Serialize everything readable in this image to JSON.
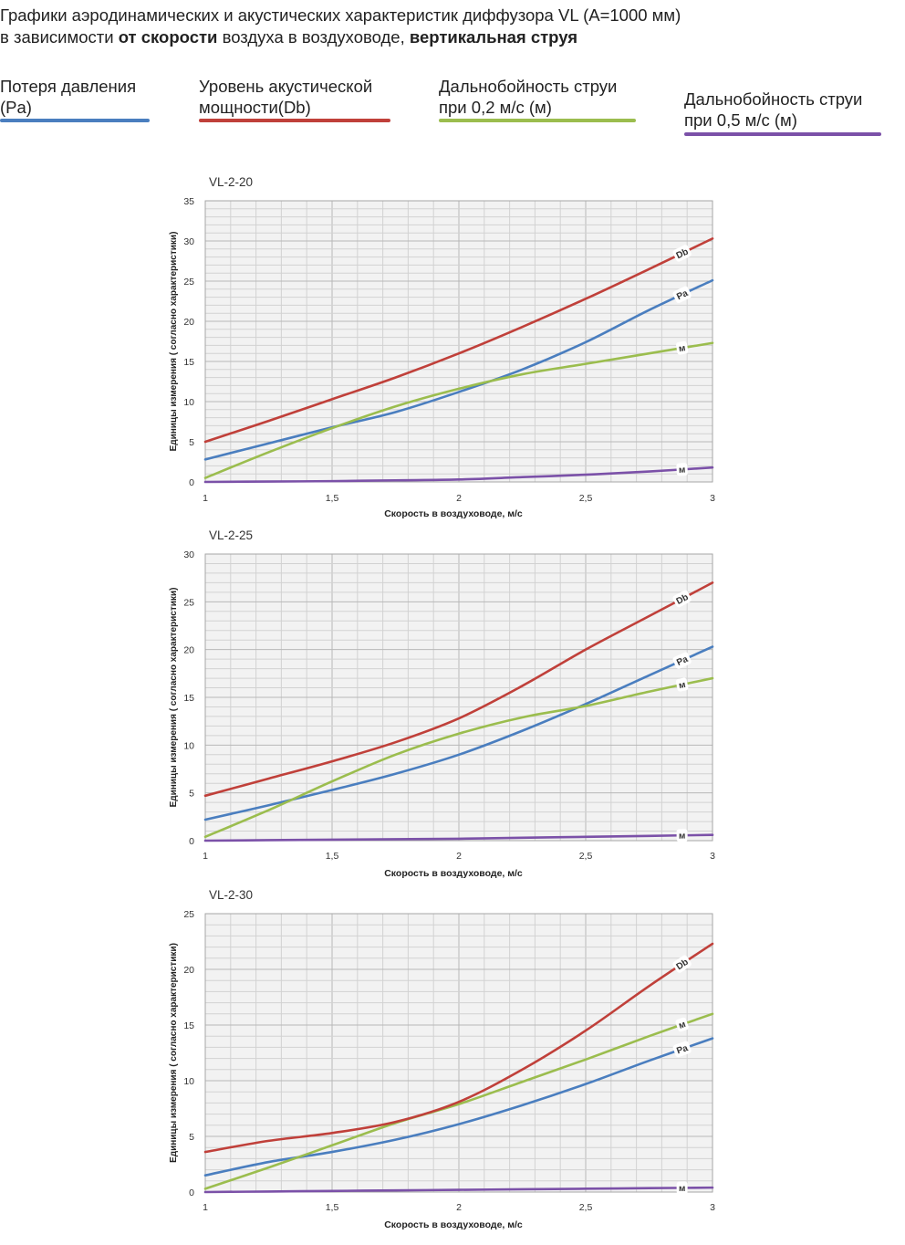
{
  "header": {
    "line1": "Графики аэродинамических и акустических характеристик  диффузора VL (А=1000 мм)",
    "line2_pre": "в зависимости ",
    "line2_bold1": "от скорости",
    "line2_mid": " воздуха в воздуховоде, ",
    "line2_bold2": "вертикальная струя"
  },
  "legend": [
    {
      "line1": "Потеря давления",
      "line2": "(Pa)",
      "color": "#4a7ebf"
    },
    {
      "line1": "Уровень акустической",
      "line2": "мощности(Db)",
      "color": "#c0403a"
    },
    {
      "line1": "Дальнобойность струи",
      "line2": "при 0,2 м/с (м)",
      "color": "#9bbd4e"
    },
    {
      "line1": "Дальнобойность струи",
      "line2": "при 0,5 м/с (м)",
      "color": "#7b51a8"
    }
  ],
  "chart_data": [
    {
      "type": "line",
      "title": "VL-2-20",
      "xlabel": "Скорость в воздуховоде, м/с",
      "ylabel": "Единицы измерения ( согласно характеристики)",
      "xlim": [
        1,
        3
      ],
      "ylim": [
        0,
        35
      ],
      "xticks": [
        1,
        1.5,
        2,
        2.5,
        3
      ],
      "xtick_labels": [
        "1",
        "1,5",
        "2",
        "2,5",
        "3"
      ],
      "yticks": [
        0,
        5,
        10,
        15,
        20,
        25,
        30,
        35
      ],
      "ytick_labels": [
        "0",
        "5",
        "10",
        "15",
        "20",
        "25",
        "30",
        "35"
      ],
      "grid": true,
      "x": [
        1,
        1.25,
        1.5,
        1.75,
        2,
        2.25,
        2.5,
        2.75,
        3
      ],
      "series": [
        {
          "key": "db",
          "name": "Db",
          "values": [
            5.0,
            7.6,
            10.3,
            13.0,
            16.0,
            19.3,
            22.8,
            26.5,
            30.3
          ]
        },
        {
          "key": "pa",
          "name": "Pa",
          "values": [
            2.8,
            4.8,
            6.8,
            8.7,
            11.2,
            14.0,
            17.4,
            21.4,
            25.1
          ]
        },
        {
          "key": "v02",
          "name": "м",
          "values": [
            0.5,
            3.7,
            6.7,
            9.4,
            11.6,
            13.4,
            14.7,
            16.0,
            17.3
          ]
        },
        {
          "key": "v05",
          "name": "м",
          "values": [
            0.0,
            0.05,
            0.1,
            0.2,
            0.3,
            0.6,
            0.9,
            1.3,
            1.8
          ]
        }
      ]
    },
    {
      "type": "line",
      "title": "VL-2-25",
      "xlabel": "Скорость в воздуховоде, м/с",
      "ylabel": "Единицы измерения ( согласно характеристики)",
      "xlim": [
        1,
        3
      ],
      "ylim": [
        0,
        30
      ],
      "xticks": [
        1,
        1.5,
        2,
        2.5,
        3
      ],
      "xtick_labels": [
        "1",
        "1,5",
        "2",
        "2,5",
        "3"
      ],
      "yticks": [
        0,
        5,
        10,
        15,
        20,
        25,
        30
      ],
      "ytick_labels": [
        "0",
        "5",
        "10",
        "15",
        "20",
        "25",
        "30"
      ],
      "grid": true,
      "x": [
        1,
        1.25,
        1.5,
        1.75,
        2,
        2.25,
        2.5,
        2.75,
        3
      ],
      "series": [
        {
          "key": "db",
          "name": "Db",
          "values": [
            4.7,
            6.5,
            8.3,
            10.3,
            12.8,
            16.2,
            20.0,
            23.5,
            27.0
          ]
        },
        {
          "key": "pa",
          "name": "Pa",
          "values": [
            2.2,
            3.7,
            5.3,
            7.0,
            9.0,
            11.5,
            14.3,
            17.3,
            20.3
          ]
        },
        {
          "key": "v02",
          "name": "м",
          "values": [
            0.4,
            3.2,
            6.2,
            9.0,
            11.2,
            12.9,
            14.1,
            15.6,
            17.0
          ]
        },
        {
          "key": "v05",
          "name": "м",
          "values": [
            0.0,
            0.05,
            0.1,
            0.15,
            0.2,
            0.3,
            0.4,
            0.5,
            0.6
          ]
        }
      ]
    },
    {
      "type": "line",
      "title": "VL-2-30",
      "xlabel": "Скорость в воздуховоде, м/с",
      "ylabel": "Единицы измерения ( согласно характеристики)",
      "xlim": [
        1,
        3
      ],
      "ylim": [
        0,
        25
      ],
      "xticks": [
        1,
        1.5,
        2,
        2.5,
        3
      ],
      "xtick_labels": [
        "1",
        "1,5",
        "2",
        "2,5",
        "3"
      ],
      "yticks": [
        0,
        5,
        10,
        15,
        20,
        25
      ],
      "ytick_labels": [
        "0",
        "5",
        "10",
        "15",
        "20",
        "25"
      ],
      "grid": true,
      "x": [
        1,
        1.25,
        1.5,
        1.75,
        2,
        2.25,
        2.5,
        2.75,
        3
      ],
      "series": [
        {
          "key": "db",
          "name": "Db",
          "values": [
            3.6,
            4.6,
            5.3,
            6.3,
            8.1,
            11.0,
            14.5,
            18.5,
            22.3
          ]
        },
        {
          "key": "pa",
          "name": "Pa",
          "values": [
            1.5,
            2.7,
            3.6,
            4.7,
            6.1,
            7.8,
            9.7,
            11.8,
            13.8
          ]
        },
        {
          "key": "v02",
          "name": "м",
          "values": [
            0.3,
            2.2,
            4.2,
            6.2,
            7.9,
            9.9,
            11.9,
            14.0,
            16.0
          ]
        },
        {
          "key": "v05",
          "name": "м",
          "values": [
            0.0,
            0.05,
            0.1,
            0.15,
            0.2,
            0.25,
            0.3,
            0.35,
            0.4
          ]
        }
      ]
    }
  ]
}
